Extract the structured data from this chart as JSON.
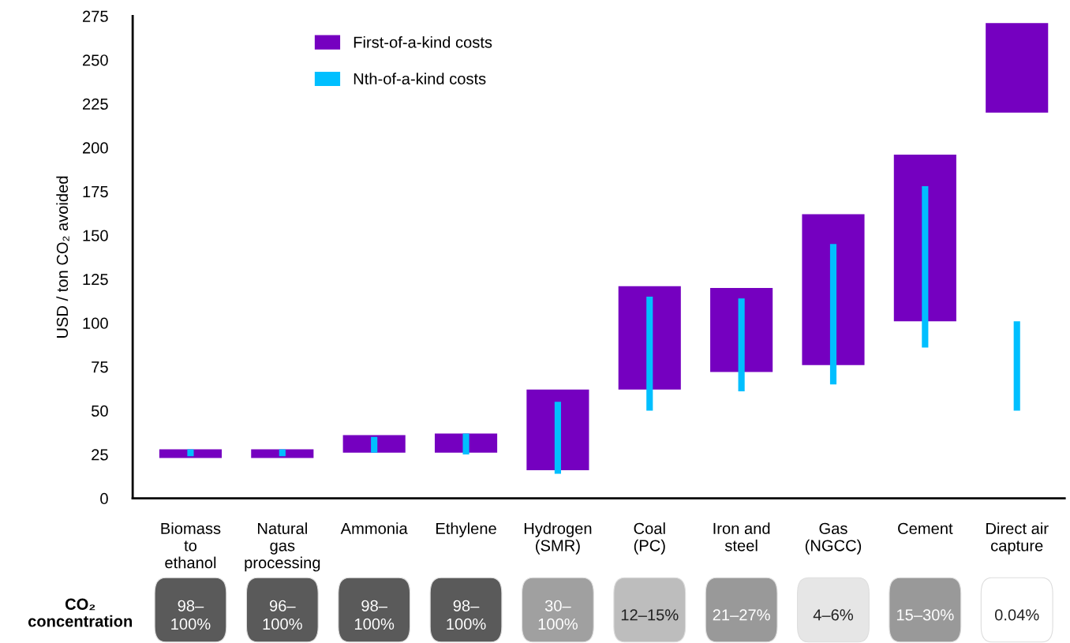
{
  "chart_data": [
    {
      "type": "bar",
      "ylabel": "USD / ton CO₂ avoided",
      "categories": [
        "Biomass\nto\nethanol",
        "Natural\ngas\nprocessing",
        "Ammonia",
        "Ethylene",
        "Hydrogen\n(SMR)",
        "Coal\n(PC)",
        "Iron and\nsteel",
        "Gas\n(NGCC)",
        "Cement",
        "Direct air\ncapture"
      ],
      "series": [
        {
          "name": "First-of-a-kind costs",
          "color": "#7500c0",
          "base": [
            23,
            23,
            26,
            26,
            16,
            62,
            72,
            76,
            101,
            220
          ],
          "values": [
            5,
            5,
            10,
            11,
            46,
            59,
            48,
            86,
            95,
            51
          ]
        },
        {
          "name": "Nth-of-a-kind costs",
          "color": "#00bfff",
          "base": [
            24,
            24,
            26,
            25,
            14,
            50,
            61,
            65,
            86,
            50
          ],
          "values": [
            4,
            4,
            9,
            12,
            41,
            65,
            53,
            80,
            92,
            51
          ]
        }
      ],
      "ylim": [
        0,
        275
      ],
      "yticks": [
        0,
        25,
        50,
        75,
        100,
        125,
        150,
        175,
        200,
        225,
        250,
        275
      ],
      "grid": false,
      "legend": "top left"
    },
    {
      "type": "other",
      "title": "CO₂\nconcentration",
      "categories": [
        "98–\n100%",
        "96–\n100%",
        "98–\n100%",
        "98–\n100%",
        "30–\n100%",
        "12–15%",
        "21–27%",
        "4–6%",
        "15–30%",
        "0.04%"
      ],
      "colors": [
        "#5a5a5a",
        "#5a5a5a",
        "#5a5a5a",
        "#5a5a5a",
        "#a0a0a0",
        "#bdbdbd",
        "#999999",
        "#e6e6e6",
        "#999999",
        "#ffffff"
      ]
    }
  ]
}
